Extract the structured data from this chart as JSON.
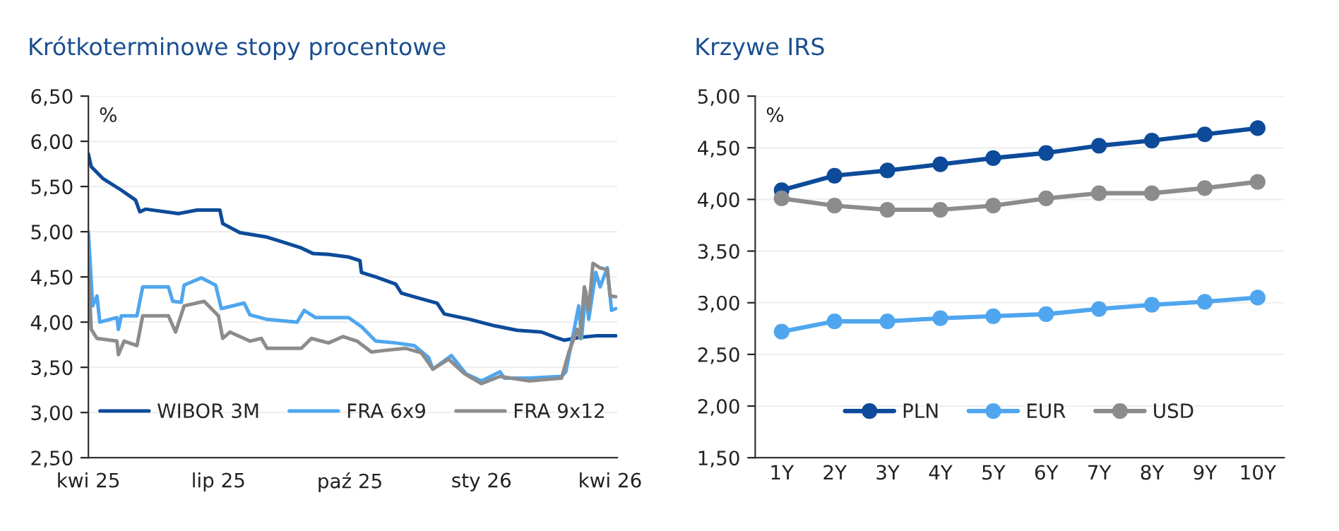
{
  "chart_data": [
    {
      "type": "line",
      "title": "Krótkoterminowe stopy procentowe",
      "annotations": [
        "%"
      ],
      "xlim": [
        "2025-04-01",
        "2026-04-06"
      ],
      "xticks": [
        {
          "value": "2025-04-01",
          "label": "kwi 25"
        },
        {
          "value": "2025-07-01",
          "label": "lip 25"
        },
        {
          "value": "2025-10-01",
          "label": "paź 25"
        },
        {
          "value": "2026-01-01",
          "label": "sty 26"
        },
        {
          "value": "2026-04-01",
          "label": "kwi 26"
        }
      ],
      "ylim": [
        2.5,
        6.5
      ],
      "yticks": [
        {
          "value": 2.5,
          "label": "2,50"
        },
        {
          "value": 3.0,
          "label": "3,00"
        },
        {
          "value": 3.5,
          "label": "3,50"
        },
        {
          "value": 4.0,
          "label": "4,00"
        },
        {
          "value": 4.5,
          "label": "4,50"
        },
        {
          "value": 5.0,
          "label": "5,00"
        },
        {
          "value": 5.5,
          "label": "5,50"
        },
        {
          "value": 6.0,
          "label": "6,00"
        },
        {
          "value": 6.5,
          "label": "6,50"
        }
      ],
      "grid": "y",
      "legend": "bottom",
      "marker": "none",
      "series": [
        {
          "name": "WIBOR 3M",
          "color": "#0d4b9a",
          "x": [
            "2025-04-01",
            "2025-04-03",
            "2025-04-11",
            "2025-04-24",
            "2025-05-04",
            "2025-05-07",
            "2025-05-11",
            "2025-06-03",
            "2025-06-16",
            "2025-07-02",
            "2025-07-04",
            "2025-07-16",
            "2025-08-04",
            "2025-08-14",
            "2025-08-28",
            "2025-09-05",
            "2025-09-16",
            "2025-09-30",
            "2025-10-08",
            "2025-10-09",
            "2025-10-19",
            "2025-11-02",
            "2025-11-06",
            "2025-11-15",
            "2025-12-01",
            "2025-12-06",
            "2025-12-24",
            "2026-01-10",
            "2026-01-26",
            "2026-02-12",
            "2026-02-22",
            "2026-02-28",
            "2026-03-10",
            "2026-03-23",
            "2026-04-05"
          ],
          "values": [
            5.86,
            5.72,
            5.59,
            5.46,
            5.35,
            5.22,
            5.25,
            5.2,
            5.24,
            5.24,
            5.09,
            4.99,
            4.94,
            4.89,
            4.82,
            4.76,
            4.75,
            4.72,
            4.68,
            4.55,
            4.5,
            4.42,
            4.32,
            4.28,
            4.21,
            4.09,
            4.03,
            3.96,
            3.91,
            3.89,
            3.83,
            3.8,
            3.83,
            3.85,
            3.85
          ]
        },
        {
          "name": "FRA 6x9",
          "color": "#4fa6ee",
          "x": [
            "2025-04-01",
            "2025-04-04",
            "2025-04-07",
            "2025-04-09",
            "2025-04-21",
            "2025-04-22",
            "2025-04-24",
            "2025-05-05",
            "2025-05-09",
            "2025-05-27",
            "2025-05-30",
            "2025-06-05",
            "2025-06-07",
            "2025-06-19",
            "2025-06-29",
            "2025-07-03",
            "2025-07-19",
            "2025-07-23",
            "2025-08-04",
            "2025-08-25",
            "2025-08-30",
            "2025-09-07",
            "2025-09-30",
            "2025-10-09",
            "2025-10-19",
            "2025-11-02",
            "2025-11-15",
            "2025-11-25",
            "2025-11-28",
            "2025-12-11",
            "2025-12-21",
            "2026-01-01",
            "2026-01-14",
            "2026-01-17",
            "2026-02-03",
            "2026-02-26",
            "2026-03-01",
            "2026-03-05",
            "2026-03-10",
            "2026-03-12",
            "2026-03-15",
            "2026-03-17",
            "2026-03-22",
            "2026-03-25",
            "2026-03-30",
            "2026-04-02",
            "2026-04-05"
          ],
          "values": [
            5.0,
            4.18,
            4.29,
            4.0,
            4.05,
            3.92,
            4.07,
            4.07,
            4.39,
            4.39,
            4.23,
            4.22,
            4.41,
            4.49,
            4.41,
            4.15,
            4.21,
            4.08,
            4.03,
            4.0,
            4.13,
            4.05,
            4.05,
            3.95,
            3.79,
            3.77,
            3.74,
            3.61,
            3.48,
            3.63,
            3.43,
            3.35,
            3.45,
            3.38,
            3.38,
            3.4,
            3.45,
            3.77,
            4.18,
            3.82,
            4.34,
            4.03,
            4.55,
            4.39,
            4.6,
            4.13,
            4.15
          ]
        },
        {
          "name": "FRA 9x12",
          "color": "#8c8c8c",
          "x": [
            "2025-04-01",
            "2025-04-03",
            "2025-04-07",
            "2025-04-21",
            "2025-04-22",
            "2025-04-26",
            "2025-05-05",
            "2025-05-09",
            "2025-05-27",
            "2025-06-01",
            "2025-06-07",
            "2025-06-21",
            "2025-07-01",
            "2025-07-04",
            "2025-07-09",
            "2025-07-23",
            "2025-07-31",
            "2025-08-04",
            "2025-08-28",
            "2025-09-04",
            "2025-09-16",
            "2025-09-26",
            "2025-10-06",
            "2025-10-16",
            "2025-10-27",
            "2025-11-09",
            "2025-11-20",
            "2025-11-28",
            "2025-12-09",
            "2025-12-20",
            "2026-01-01",
            "2026-01-14",
            "2026-02-03",
            "2026-02-26",
            "2026-03-03",
            "2026-03-09",
            "2026-03-11",
            "2026-03-14",
            "2026-03-17",
            "2026-03-20",
            "2026-03-25",
            "2026-03-30",
            "2026-04-01",
            "2026-04-05"
          ],
          "values": [
            4.6,
            3.92,
            3.82,
            3.79,
            3.64,
            3.79,
            3.74,
            4.07,
            4.07,
            3.89,
            4.18,
            4.23,
            4.07,
            3.82,
            3.89,
            3.79,
            3.82,
            3.71,
            3.71,
            3.82,
            3.77,
            3.84,
            3.79,
            3.67,
            3.69,
            3.71,
            3.66,
            3.48,
            3.59,
            3.43,
            3.32,
            3.4,
            3.35,
            3.38,
            3.66,
            3.92,
            3.82,
            4.39,
            4.13,
            4.65,
            4.6,
            4.58,
            4.29,
            4.28
          ]
        }
      ]
    },
    {
      "type": "line",
      "title": "Krzywe IRS",
      "annotations": [
        "%"
      ],
      "categories": [
        "1Y",
        "2Y",
        "3Y",
        "4Y",
        "5Y",
        "6Y",
        "7Y",
        "8Y",
        "9Y",
        "10Y"
      ],
      "ylim": [
        1.5,
        5.0
      ],
      "yticks": [
        {
          "value": 1.5,
          "label": "1,50"
        },
        {
          "value": 2.0,
          "label": "2,00"
        },
        {
          "value": 2.5,
          "label": "2,50"
        },
        {
          "value": 3.0,
          "label": "3,00"
        },
        {
          "value": 3.5,
          "label": "3,50"
        },
        {
          "value": 4.0,
          "label": "4,00"
        },
        {
          "value": 4.5,
          "label": "4,50"
        },
        {
          "value": 5.0,
          "label": "5,00"
        }
      ],
      "grid": "y",
      "legend": "bottom",
      "marker": "circle",
      "series": [
        {
          "name": "PLN",
          "color": "#0d4b9a",
          "values": [
            4.09,
            4.23,
            4.28,
            4.34,
            4.4,
            4.45,
            4.52,
            4.57,
            4.63,
            4.69
          ]
        },
        {
          "name": "EUR",
          "color": "#4fa6ee",
          "values": [
            2.72,
            2.82,
            2.82,
            2.85,
            2.87,
            2.89,
            2.94,
            2.98,
            3.01,
            3.05
          ]
        },
        {
          "name": "USD",
          "color": "#8c8c8c",
          "values": [
            4.01,
            3.94,
            3.9,
            3.9,
            3.94,
            4.01,
            4.06,
            4.06,
            4.11,
            4.17
          ]
        }
      ]
    }
  ]
}
